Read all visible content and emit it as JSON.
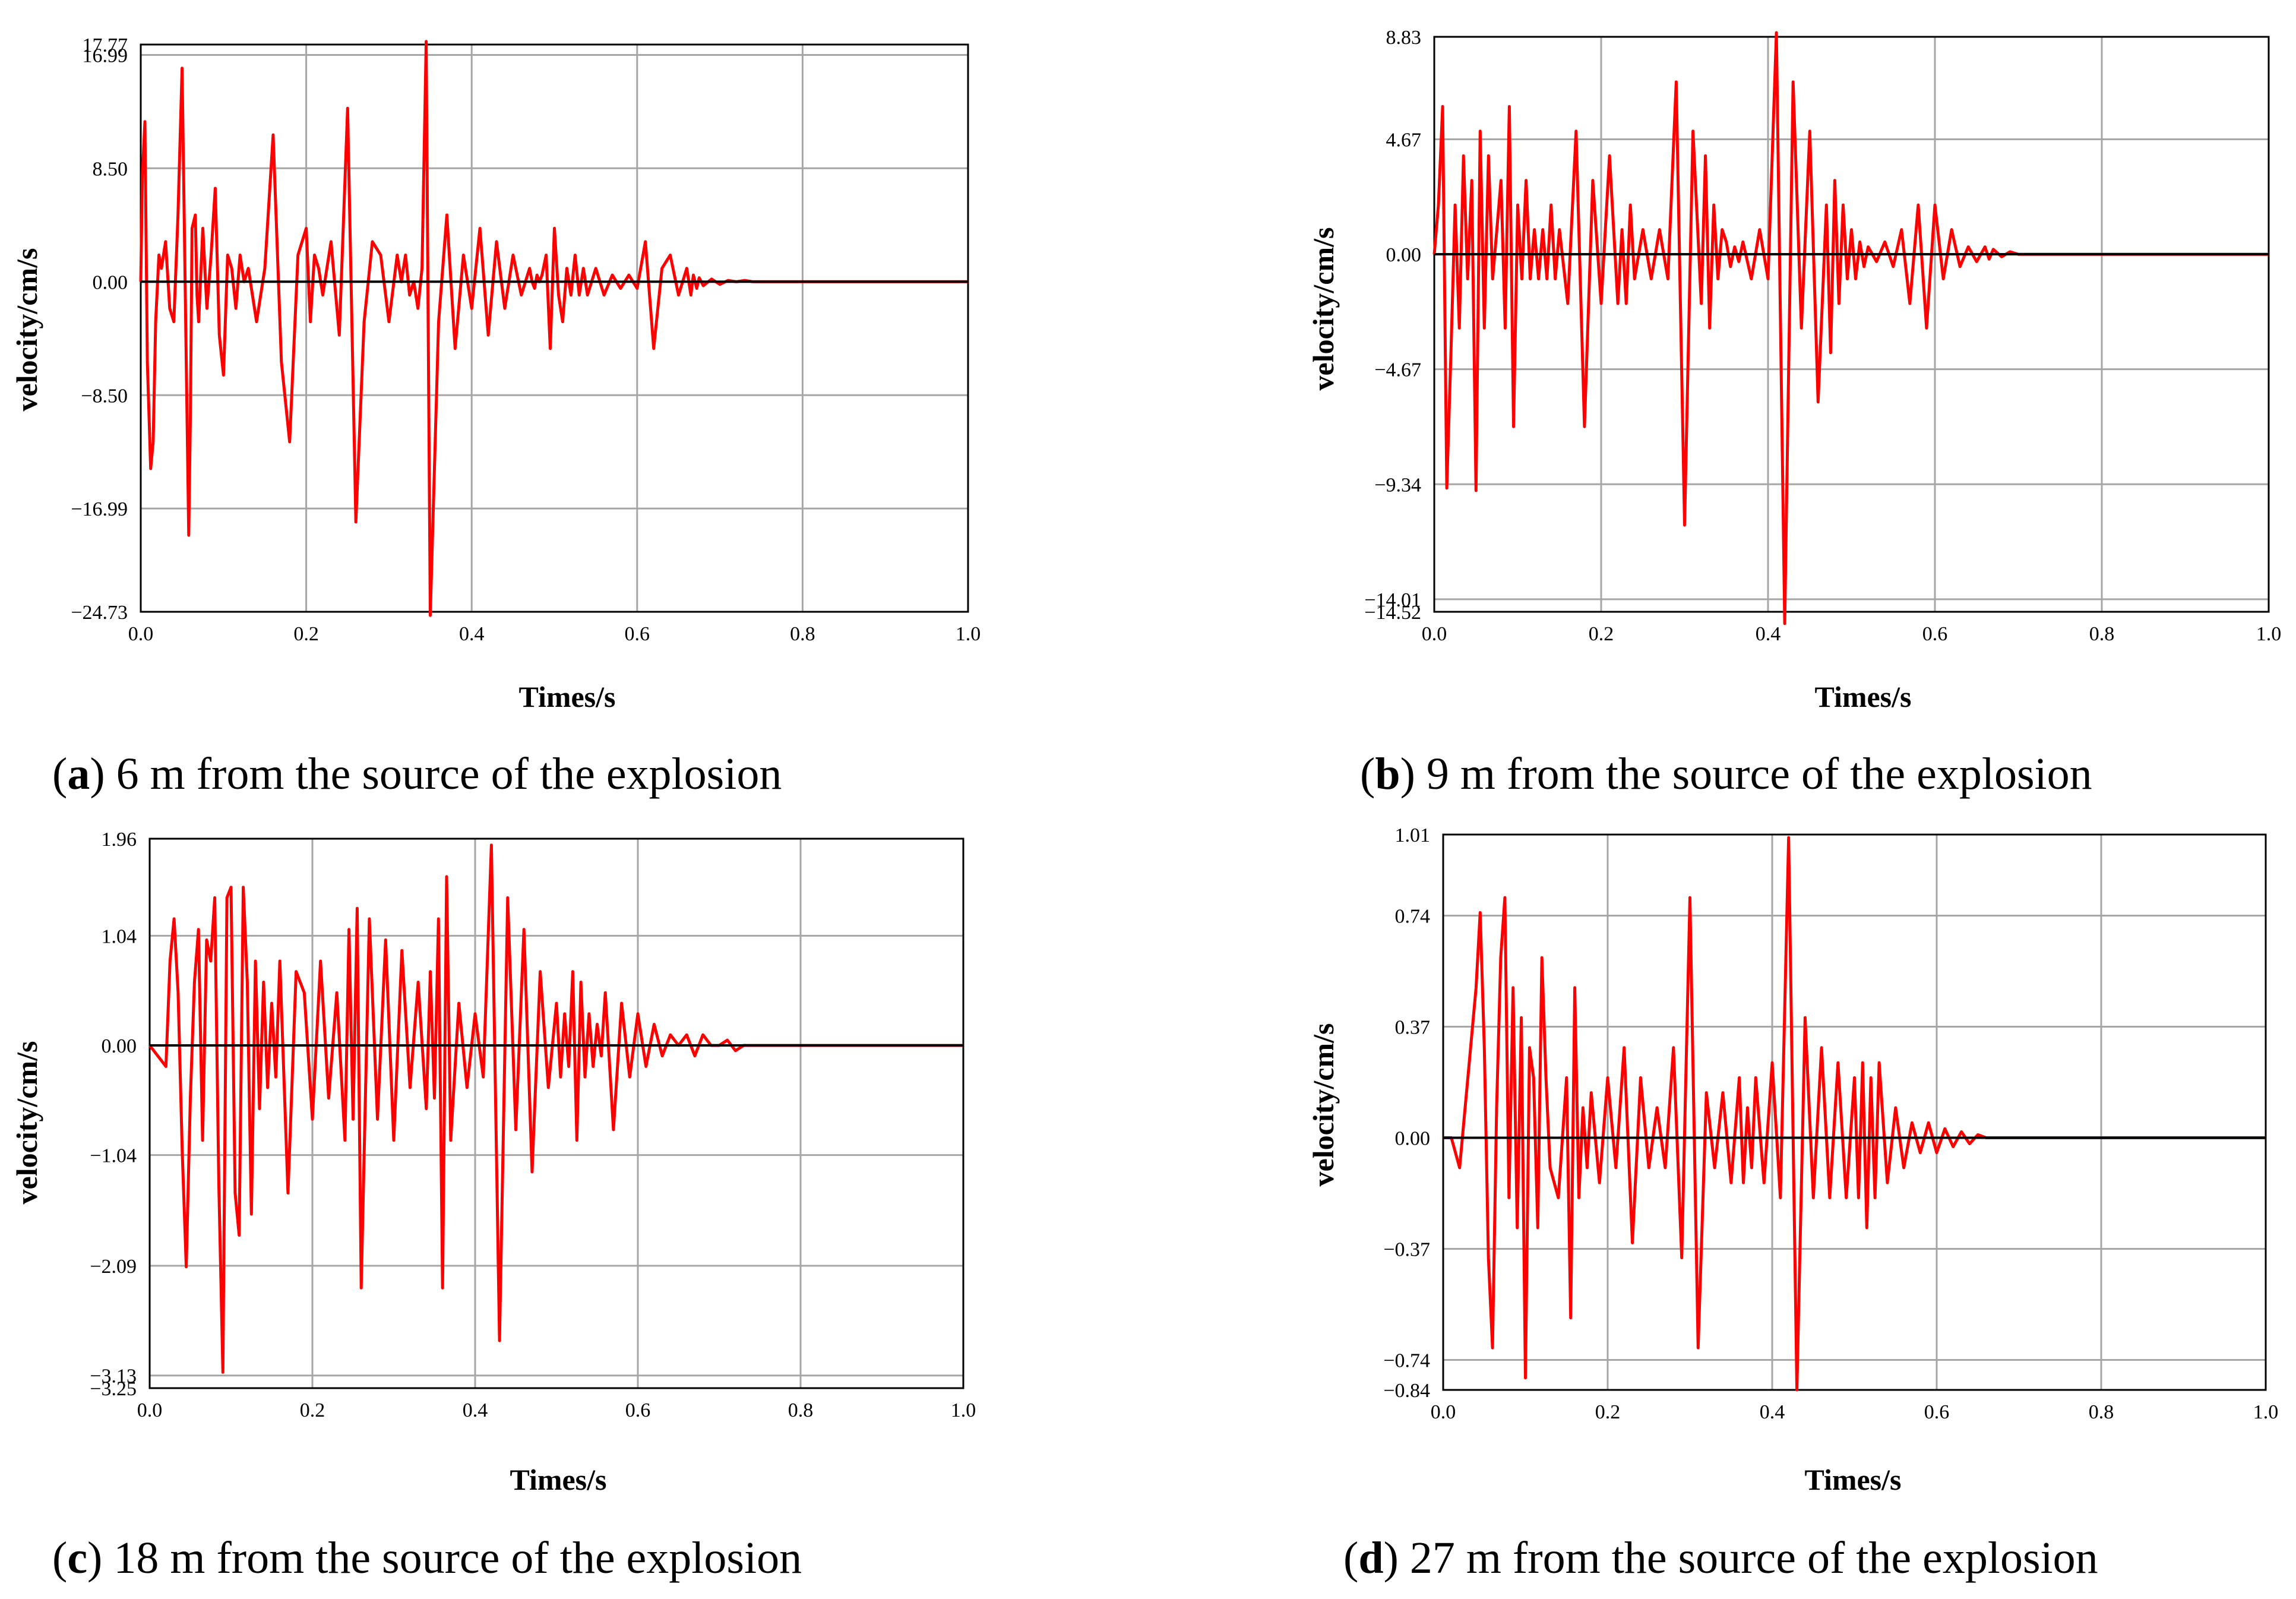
{
  "colors": {
    "series": "#ff0000",
    "grid": "#a6a6a6",
    "axis": "#000000"
  },
  "chart_data": [
    {
      "id": "a",
      "type": "line",
      "caption": {
        "letter": "a",
        "text": ") 6 m from the source of the explosion"
      },
      "xlabel": "Times/s",
      "ylabel": "velocity/cm/s",
      "xlim": [
        0,
        1.0
      ],
      "ylim": [
        -24.73,
        17.77
      ],
      "xticks": [
        "0.0",
        "0.2",
        "0.4",
        "0.6",
        "0.8",
        "1.0"
      ],
      "yticks": [
        {
          "value": 17.77,
          "label": "17.77"
        },
        {
          "value": 16.99,
          "label": "16.99"
        },
        {
          "value": 8.5,
          "label": "8.50"
        },
        {
          "value": 0.0,
          "label": "0.00"
        },
        {
          "value": -8.5,
          "label": "−8.50"
        },
        {
          "value": -16.99,
          "label": "−16.99"
        },
        {
          "value": -24.73,
          "label": "−24.73"
        }
      ],
      "series": [
        {
          "name": "velocity",
          "x": [
            0.0,
            0.002,
            0.005,
            0.008,
            0.012,
            0.015,
            0.018,
            0.022,
            0.025,
            0.03,
            0.035,
            0.04,
            0.045,
            0.05,
            0.055,
            0.058,
            0.06,
            0.062,
            0.066,
            0.068,
            0.07,
            0.075,
            0.08,
            0.085,
            0.09,
            0.095,
            0.1,
            0.105,
            0.11,
            0.115,
            0.12,
            0.125,
            0.13,
            0.14,
            0.15,
            0.16,
            0.17,
            0.18,
            0.19,
            0.2,
            0.205,
            0.21,
            0.215,
            0.22,
            0.225,
            0.23,
            0.24,
            0.25,
            0.26,
            0.27,
            0.28,
            0.29,
            0.3,
            0.31,
            0.315,
            0.32,
            0.325,
            0.33,
            0.335,
            0.34,
            0.345,
            0.35,
            0.36,
            0.37,
            0.38,
            0.39,
            0.4,
            0.41,
            0.42,
            0.43,
            0.44,
            0.45,
            0.46,
            0.47,
            0.473,
            0.476,
            0.479,
            0.482,
            0.485,
            0.49,
            0.495,
            0.5,
            0.505,
            0.51,
            0.515,
            0.52,
            0.525,
            0.53,
            0.535,
            0.54,
            0.55,
            0.56,
            0.57,
            0.58,
            0.59,
            0.6,
            0.61,
            0.62,
            0.63,
            0.64,
            0.65,
            0.66,
            0.665,
            0.668,
            0.672,
            0.675,
            0.68,
            0.69,
            0.7,
            0.71,
            0.72,
            0.73,
            0.74,
            0.76,
            0.78,
            0.8,
            0.82,
            0.85,
            0.9,
            0.95,
            1.0
          ],
          "y": [
            0,
            8,
            12,
            -6,
            -14,
            -12,
            -3,
            2,
            1,
            3,
            -2,
            -3,
            5,
            16,
            -6,
            -19,
            -10,
            4,
            5,
            -1,
            -3,
            4,
            -2,
            2,
            7,
            -4,
            -7,
            2,
            1,
            -2,
            2,
            0,
            1,
            -3,
            1,
            11,
            -6,
            -12,
            2,
            4,
            -3,
            2,
            1,
            -1,
            1,
            3,
            -4,
            13,
            -18,
            -3,
            3,
            2,
            -3,
            2,
            0,
            2,
            -1,
            0,
            -2,
            1,
            18,
            -25,
            -3,
            5,
            -5,
            2,
            -2,
            4,
            -4,
            3,
            -2,
            2,
            -1,
            1,
            0,
            -0.5,
            0.5,
            0,
            0.5,
            2,
            -5,
            4,
            -1,
            -3,
            1,
            -1,
            2,
            -1,
            1,
            -1,
            1,
            -1,
            0.5,
            -0.5,
            0.5,
            -0.5,
            3,
            -5,
            1,
            2,
            -1,
            1,
            -1,
            0.5,
            -0.5,
            0.3,
            -0.3,
            0.2,
            -0.2,
            0.1,
            0,
            0.1,
            0,
            0,
            0,
            0,
            0,
            0,
            0,
            0,
            0
          ]
        }
      ]
    },
    {
      "id": "b",
      "type": "line",
      "caption": {
        "letter": "b",
        "text": ") 9 m from the source of the explosion"
      },
      "xlabel": "Times/s",
      "ylabel": "velocity/cm/s",
      "xlim": [
        0,
        1.0
      ],
      "ylim": [
        -14.52,
        8.83
      ],
      "xticks": [
        "0.0",
        "0.2",
        "0.4",
        "0.6",
        "0.8",
        "1.0"
      ],
      "yticks": [
        {
          "value": 8.83,
          "label": "8.83"
        },
        {
          "value": 4.67,
          "label": "4.67"
        },
        {
          "value": 0.0,
          "label": "0.00"
        },
        {
          "value": -4.67,
          "label": "−4.67"
        },
        {
          "value": -9.34,
          "label": "−9.34"
        },
        {
          "value": -14.01,
          "label": "−14.01"
        },
        {
          "value": -14.52,
          "label": "−14.52"
        }
      ],
      "series": [
        {
          "name": "velocity",
          "x": [
            0.0,
            0.005,
            0.01,
            0.015,
            0.02,
            0.025,
            0.03,
            0.035,
            0.04,
            0.045,
            0.05,
            0.055,
            0.06,
            0.065,
            0.07,
            0.075,
            0.08,
            0.085,
            0.09,
            0.095,
            0.1,
            0.105,
            0.11,
            0.115,
            0.12,
            0.125,
            0.13,
            0.135,
            0.14,
            0.145,
            0.15,
            0.16,
            0.17,
            0.18,
            0.19,
            0.2,
            0.21,
            0.22,
            0.225,
            0.23,
            0.235,
            0.24,
            0.25,
            0.26,
            0.27,
            0.28,
            0.29,
            0.3,
            0.31,
            0.32,
            0.325,
            0.33,
            0.335,
            0.34,
            0.345,
            0.35,
            0.355,
            0.36,
            0.365,
            0.37,
            0.38,
            0.39,
            0.4,
            0.41,
            0.42,
            0.43,
            0.44,
            0.45,
            0.46,
            0.47,
            0.475,
            0.48,
            0.485,
            0.49,
            0.495,
            0.5,
            0.505,
            0.51,
            0.515,
            0.52,
            0.53,
            0.54,
            0.55,
            0.56,
            0.57,
            0.58,
            0.59,
            0.6,
            0.61,
            0.62,
            0.63,
            0.64,
            0.65,
            0.66,
            0.665,
            0.67,
            0.68,
            0.69,
            0.7,
            0.71,
            0.72,
            0.73,
            0.74,
            0.76,
            0.78,
            0.8,
            0.85,
            0.9,
            0.95,
            1.0
          ],
          "y": [
            0,
            2,
            6,
            -9.5,
            -4,
            2,
            -3,
            4,
            -1,
            3,
            -9.6,
            5,
            -3,
            4,
            -1,
            1,
            3,
            -3,
            6,
            -7,
            2,
            -1,
            3,
            -1,
            1,
            -1,
            1,
            -1,
            2,
            -1,
            1,
            -2,
            5,
            -7,
            3,
            -2,
            4,
            -2,
            1,
            -2,
            2,
            -1,
            1,
            -1,
            1,
            -1,
            7,
            -11,
            5,
            -2,
            4,
            -3,
            2,
            -1,
            1,
            0.5,
            -0.5,
            0.3,
            -0.3,
            0.5,
            -1,
            1,
            -1,
            9,
            -15,
            7,
            -3,
            5,
            -6,
            2,
            -4,
            3,
            -2,
            2,
            -1,
            1,
            -1,
            0.5,
            -0.5,
            0.3,
            -0.3,
            0.5,
            -0.5,
            1,
            -2,
            2,
            -3,
            2,
            -1,
            1,
            -0.5,
            0.3,
            -0.3,
            0.3,
            -0.2,
            0.2,
            -0.1,
            0.1,
            0,
            0,
            0,
            0,
            0,
            0,
            0,
            0,
            0,
            0,
            0,
            0
          ]
        }
      ]
    },
    {
      "id": "c",
      "type": "line",
      "caption": {
        "letter": "c",
        "text": ") 18 m from the source of the explosion"
      },
      "xlabel": "Times/s",
      "ylabel": "velocity/cm/s",
      "xlim": [
        0,
        1.0
      ],
      "ylim": [
        -3.25,
        1.96
      ],
      "xticks": [
        "0.0",
        "0.2",
        "0.4",
        "0.6",
        "0.8",
        "1.0"
      ],
      "yticks": [
        {
          "value": 1.96,
          "label": "1.96"
        },
        {
          "value": 1.04,
          "label": "1.04"
        },
        {
          "value": 0.0,
          "label": "0.00"
        },
        {
          "value": -1.04,
          "label": "−1.04"
        },
        {
          "value": -2.09,
          "label": "−2.09"
        },
        {
          "value": -3.13,
          "label": "−3.13"
        },
        {
          "value": -3.25,
          "label": "−3.25"
        }
      ],
      "series": [
        {
          "name": "velocity",
          "x": [
            0.0,
            0.01,
            0.02,
            0.025,
            0.03,
            0.035,
            0.04,
            0.045,
            0.05,
            0.055,
            0.06,
            0.065,
            0.07,
            0.075,
            0.08,
            0.085,
            0.09,
            0.095,
            0.1,
            0.105,
            0.11,
            0.115,
            0.12,
            0.125,
            0.13,
            0.135,
            0.14,
            0.145,
            0.15,
            0.155,
            0.16,
            0.17,
            0.18,
            0.19,
            0.2,
            0.21,
            0.22,
            0.23,
            0.24,
            0.245,
            0.25,
            0.255,
            0.26,
            0.27,
            0.28,
            0.29,
            0.3,
            0.31,
            0.32,
            0.33,
            0.34,
            0.345,
            0.35,
            0.355,
            0.36,
            0.365,
            0.37,
            0.38,
            0.39,
            0.4,
            0.41,
            0.42,
            0.43,
            0.44,
            0.45,
            0.46,
            0.47,
            0.48,
            0.49,
            0.5,
            0.505,
            0.51,
            0.515,
            0.52,
            0.525,
            0.53,
            0.535,
            0.54,
            0.545,
            0.55,
            0.555,
            0.56,
            0.57,
            0.58,
            0.59,
            0.6,
            0.61,
            0.62,
            0.63,
            0.64,
            0.65,
            0.66,
            0.67,
            0.68,
            0.69,
            0.7,
            0.71,
            0.72,
            0.73,
            0.74,
            0.75,
            0.76,
            0.77,
            0.78,
            0.8,
            0.82,
            0.84,
            0.86,
            0.88,
            0.9,
            0.95,
            1.0
          ],
          "y": [
            0,
            -0.1,
            -0.2,
            0.8,
            1.2,
            0.5,
            -1,
            -2.1,
            -0.5,
            0.6,
            1.1,
            -0.9,
            1,
            0.8,
            1.4,
            -1.3,
            -3.1,
            1.4,
            1.5,
            -1.4,
            -1.8,
            1.5,
            0.6,
            -1.6,
            0.8,
            -0.6,
            0.6,
            -0.4,
            0.4,
            -0.3,
            0.8,
            -1.4,
            0.7,
            0.5,
            -0.7,
            0.8,
            -0.5,
            0.5,
            -0.9,
            1.1,
            -0.7,
            1.3,
            -2.3,
            1.2,
            -0.7,
            1,
            -0.9,
            0.9,
            -0.4,
            0.6,
            -0.6,
            0.7,
            -0.5,
            1.2,
            -2.3,
            1.6,
            -0.9,
            0.4,
            -0.4,
            0.3,
            -0.3,
            1.9,
            -2.8,
            1.4,
            -0.8,
            1.1,
            -1.2,
            0.7,
            -0.4,
            0.4,
            -0.3,
            0.3,
            -0.2,
            0.7,
            -0.9,
            0.6,
            -0.3,
            0.3,
            -0.2,
            0.2,
            -0.1,
            0.5,
            -0.8,
            0.4,
            -0.3,
            0.3,
            -0.2,
            0.2,
            -0.1,
            0.1,
            0,
            0.1,
            -0.1,
            0.1,
            0,
            0,
            0.05,
            -0.05,
            0,
            0,
            0,
            0,
            0,
            0,
            0,
            0,
            0,
            0,
            0,
            0,
            0,
            0
          ]
        }
      ]
    },
    {
      "id": "d",
      "type": "line",
      "caption": {
        "letter": "d",
        "text": ") 27 m from the source of the explosion"
      },
      "xlabel": "Times/s",
      "ylabel": "velocity/cm/s",
      "xlim": [
        0,
        1.0
      ],
      "ylim": [
        -0.84,
        1.01
      ],
      "xticks": [
        "0.0",
        "0.2",
        "0.4",
        "0.6",
        "0.8",
        "1.0"
      ],
      "yticks": [
        {
          "value": 1.01,
          "label": "1.01"
        },
        {
          "value": 0.74,
          "label": "0.74"
        },
        {
          "value": 0.37,
          "label": "0.37"
        },
        {
          "value": 0.0,
          "label": "0.00"
        },
        {
          "value": -0.37,
          "label": "−0.37"
        },
        {
          "value": -0.74,
          "label": "−0.74"
        },
        {
          "value": -0.84,
          "label": "−0.84"
        }
      ],
      "series": [
        {
          "name": "velocity",
          "x": [
            0.0,
            0.01,
            0.02,
            0.03,
            0.04,
            0.045,
            0.05,
            0.055,
            0.06,
            0.065,
            0.07,
            0.075,
            0.08,
            0.085,
            0.09,
            0.095,
            0.1,
            0.105,
            0.11,
            0.115,
            0.12,
            0.125,
            0.13,
            0.14,
            0.15,
            0.155,
            0.16,
            0.165,
            0.17,
            0.175,
            0.18,
            0.19,
            0.2,
            0.21,
            0.22,
            0.23,
            0.24,
            0.25,
            0.26,
            0.27,
            0.28,
            0.29,
            0.3,
            0.31,
            0.32,
            0.33,
            0.34,
            0.35,
            0.36,
            0.365,
            0.37,
            0.375,
            0.38,
            0.39,
            0.4,
            0.41,
            0.42,
            0.43,
            0.44,
            0.45,
            0.46,
            0.47,
            0.48,
            0.49,
            0.5,
            0.505,
            0.51,
            0.515,
            0.52,
            0.525,
            0.53,
            0.54,
            0.55,
            0.56,
            0.57,
            0.58,
            0.59,
            0.6,
            0.61,
            0.62,
            0.63,
            0.64,
            0.65,
            0.66,
            0.67,
            0.68,
            0.69,
            0.7,
            0.71,
            0.72,
            0.74,
            0.76,
            0.78,
            0.8,
            0.83,
            0.86,
            0.9,
            0.95,
            1.0
          ],
          "y": [
            0,
            0,
            -0.1,
            0.2,
            0.5,
            0.75,
            0.3,
            -0.4,
            -0.7,
            0.1,
            0.6,
            0.8,
            -0.2,
            0.5,
            -0.3,
            0.4,
            -0.8,
            0.3,
            0.2,
            -0.3,
            0.6,
            0.2,
            -0.1,
            -0.2,
            0.2,
            -0.6,
            0.5,
            -0.2,
            0.1,
            -0.1,
            0.15,
            -0.15,
            0.2,
            -0.1,
            0.3,
            -0.35,
            0.2,
            -0.1,
            0.1,
            -0.1,
            0.3,
            -0.4,
            0.8,
            -0.7,
            0.15,
            -0.1,
            0.15,
            -0.15,
            0.2,
            -0.15,
            0.1,
            -0.1,
            0.2,
            -0.15,
            0.25,
            -0.2,
            1.0,
            -0.84,
            0.4,
            -0.2,
            0.3,
            -0.2,
            0.25,
            -0.2,
            0.2,
            -0.2,
            0.25,
            -0.3,
            0.2,
            -0.2,
            0.25,
            -0.15,
            0.1,
            -0.1,
            0.05,
            -0.05,
            0.05,
            -0.05,
            0.03,
            -0.03,
            0.02,
            -0.02,
            0.01,
            0,
            0,
            0,
            0,
            0,
            0,
            0,
            0,
            0,
            0,
            0,
            0,
            0,
            0,
            0,
            0
          ]
        }
      ]
    }
  ]
}
